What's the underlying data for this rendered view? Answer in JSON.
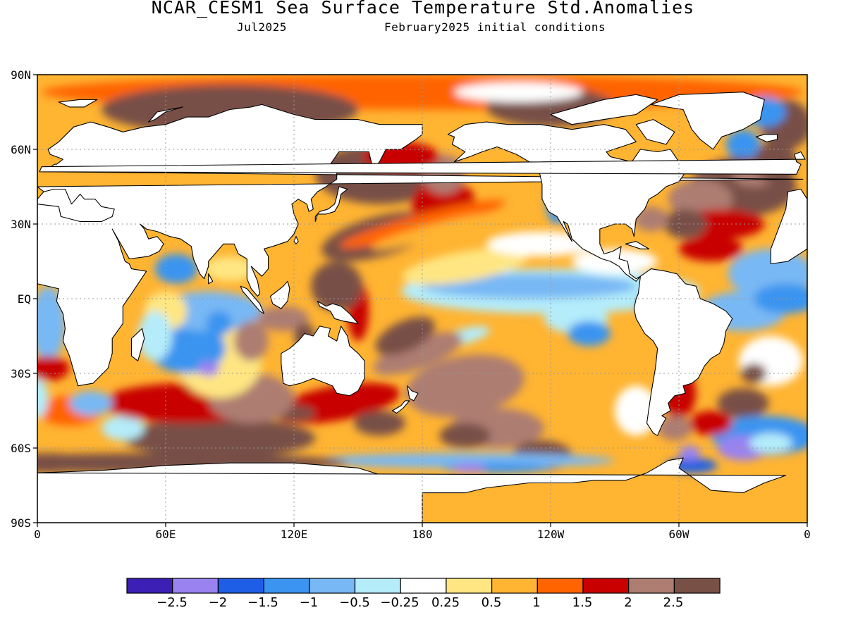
{
  "header": {
    "title": "NCAR_CESM1 Sea Surface Temperature Std.Anomalies",
    "forecast_month": "Jul2025",
    "init_conditions": "February2025 initial conditions"
  },
  "map": {
    "projection": "cylindrical equidistant, 0 to 360 longitude",
    "lat_labels": [
      "90N",
      "60N",
      "30N",
      "EQ",
      "30S",
      "60S",
      "90S"
    ],
    "lon_labels": [
      "0",
      "60E",
      "120E",
      "180",
      "120W",
      "60W",
      "0"
    ],
    "land_color": "#ffffff",
    "gridlines": "dotted"
  },
  "legend": {
    "colors": [
      "#3c1fb4",
      "#9a82f0",
      "#1e5ee6",
      "#3a94f0",
      "#78b8f4",
      "#b4ecfa",
      "#ffffff",
      "#ffe682",
      "#ffb432",
      "#ff6400",
      "#c80000",
      "#ad7d72",
      "#785046"
    ],
    "labels": [
      "-2.5",
      "-2",
      "-1.5",
      "-1",
      "-0.5",
      "-0.25",
      "0.25",
      "0.5",
      "1",
      "1.5",
      "2",
      "2.5"
    ]
  }
}
